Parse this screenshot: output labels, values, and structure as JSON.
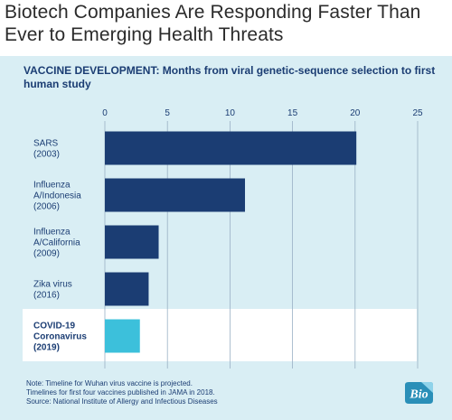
{
  "title": "Biotech Companies Are Responding Faster Than Ever to Emerging Health Threats",
  "chart_data": {
    "type": "bar",
    "orientation": "horizontal",
    "title": "VACCINE DEVELOPMENT: Months from viral genetic-sequence selection to first human study",
    "categories": [
      [
        "SARS",
        "(2003)"
      ],
      [
        "Influenza",
        "A/Indonesia",
        "(2006)"
      ],
      [
        "Influenza",
        "A/California",
        "(2009)"
      ],
      [
        "Zika virus",
        "(2016)"
      ],
      [
        "COVID-19",
        "Coronavirus",
        "(2019)"
      ]
    ],
    "values": [
      20.1,
      11.2,
      4.3,
      3.5,
      2.8
    ],
    "highlight_index": 4,
    "xlim": [
      0,
      25
    ],
    "xticks": [
      0,
      5,
      10,
      15,
      20,
      25
    ],
    "xticks_position": "top",
    "grid": true,
    "colors": {
      "bar": "#1b3d73",
      "highlight_bar": "#3cc0db",
      "highlight_band": "#ffffff",
      "panel": "#d9eef4",
      "gridline": "#9ab0c4",
      "text": "#1b3d73"
    }
  },
  "notes": [
    "Note: Timeline for Wuhan virus vaccine is projected.",
    "Timelines for first four vaccines published in JAMA in 2018.",
    "Source: National Institute of Allergy and Infectious Diseases"
  ],
  "logo": {
    "text": "Bio",
    "color": "#2a8fb8",
    "icon": "bio-logo-icon"
  }
}
